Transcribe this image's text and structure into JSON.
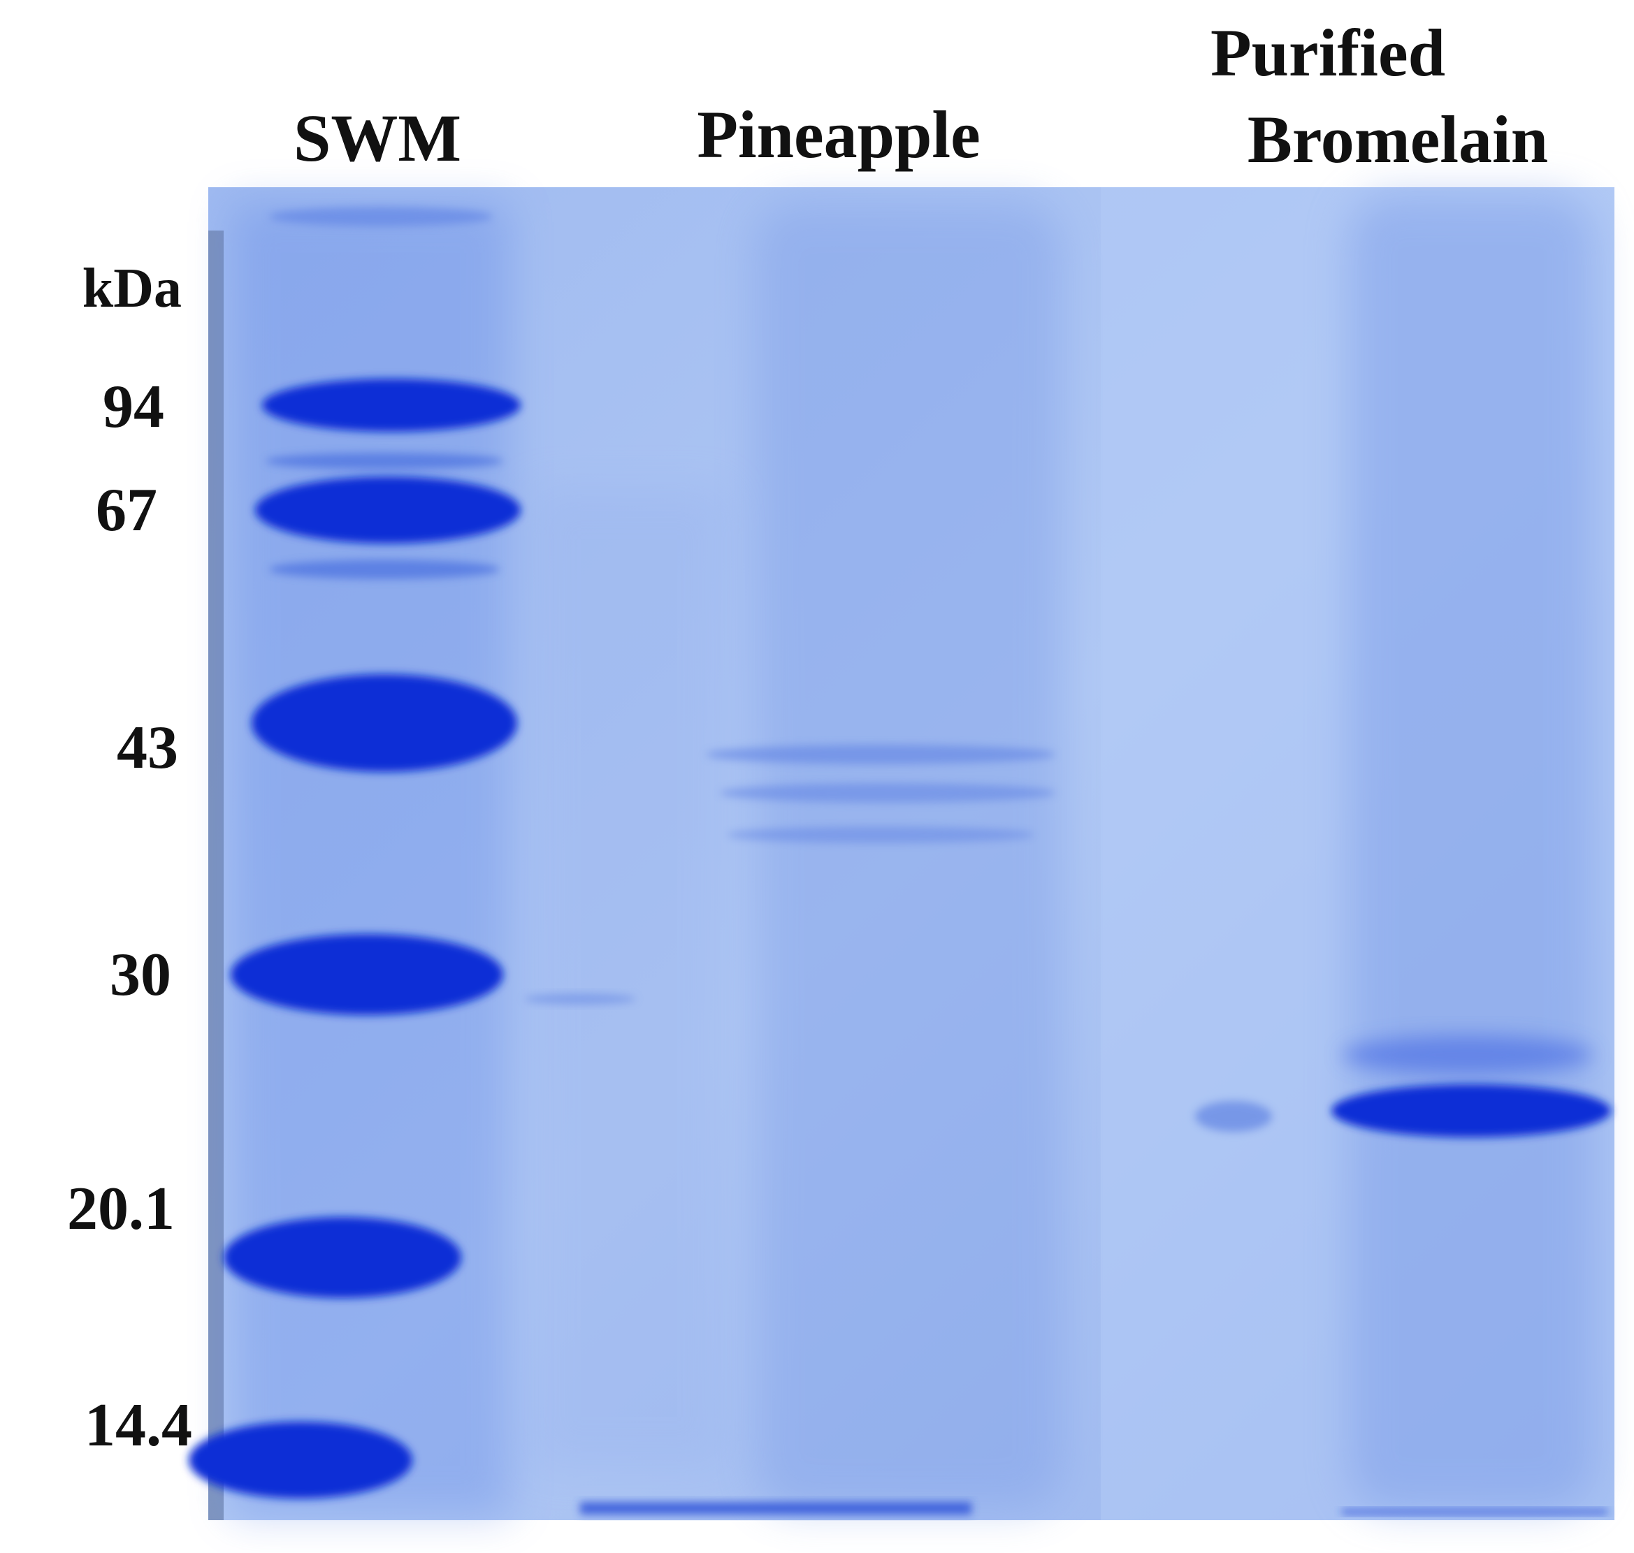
{
  "lanes": {
    "swm": "SWM",
    "pineapple": "Pineapple",
    "purified_line1": "Purified",
    "purified_line2": "Bromelain"
  },
  "units": "kDa",
  "markers": [
    "94",
    "67",
    "43",
    "30",
    "20.1",
    "14.4"
  ],
  "colors": {
    "gel_background": "#a7c1f2",
    "band_dark": "#0a2fd6",
    "band_medium": "#3d62e3",
    "band_faint": "#8aa8ee"
  }
}
